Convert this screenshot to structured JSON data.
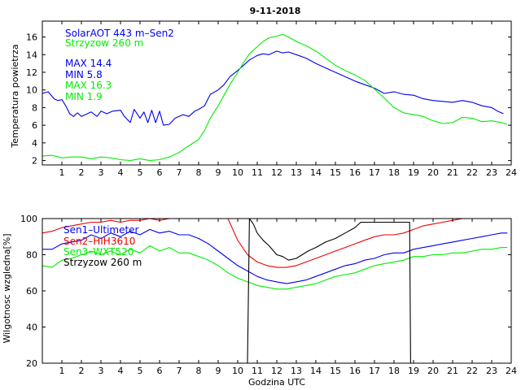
{
  "title": "9-11-2018",
  "colors": {
    "blue": "#0000ee",
    "green": "#00ee00",
    "red": "#ee0000",
    "black": "#000000"
  },
  "chart_data": [
    {
      "type": "line",
      "ylabel": "Temperatura powietrza",
      "xlabel": "",
      "xlim": [
        0,
        24
      ],
      "ylim": [
        1.5,
        17.8
      ],
      "xticks": [
        1,
        2,
        3,
        4,
        5,
        6,
        7,
        8,
        9,
        10,
        11,
        12,
        13,
        14,
        15,
        16,
        17,
        18,
        19,
        20,
        21,
        22,
        23,
        24
      ],
      "xticklabels": [
        "1",
        "2",
        "3",
        "4",
        "5",
        "6",
        "7",
        "8",
        "9",
        "10",
        "11",
        "12",
        "13",
        "14",
        "15",
        "16",
        "17",
        "18",
        "19",
        "20",
        "21",
        "22",
        "23",
        "24"
      ],
      "yticks": [
        2,
        4,
        6,
        8,
        10,
        12,
        14,
        16
      ],
      "yticklabels": [
        "2",
        "4",
        "6",
        "8",
        "10",
        "12",
        "14",
        "16"
      ],
      "legend": [
        {
          "text": "SolarAOT 443 m–Sen2",
          "color": "blue"
        },
        {
          "text": "Strzyzow 260 m",
          "color": "green"
        }
      ],
      "stats": [
        {
          "text": "MAX 14.4",
          "color": "blue"
        },
        {
          "text": "MIN 5.8",
          "color": "blue"
        },
        {
          "text": "MAX 16.3",
          "color": "green"
        },
        {
          "text": "MIN 1.9",
          "color": "green"
        }
      ],
      "series": [
        {
          "name": "SolarAOT 443 m–Sen2",
          "color": "blue",
          "x": [
            0.0,
            0.3,
            0.6,
            0.8,
            1.0,
            1.2,
            1.4,
            1.6,
            1.8,
            2.0,
            2.2,
            2.5,
            2.8,
            3.0,
            3.3,
            3.6,
            4.0,
            4.2,
            4.5,
            4.7,
            5.0,
            5.2,
            5.4,
            5.6,
            5.8,
            6.0,
            6.2,
            6.5,
            6.8,
            7.0,
            7.2,
            7.5,
            7.8,
            8.0,
            8.3,
            8.6,
            9.0,
            9.3,
            9.6,
            10.0,
            10.3,
            10.6,
            11.0,
            11.3,
            11.6,
            12.0,
            12.3,
            12.6,
            13.0,
            13.5,
            14.0,
            14.5,
            15.0,
            15.5,
            16.0,
            16.5,
            17.0,
            17.5,
            18.0,
            18.5,
            19.0,
            19.5,
            20.0,
            20.5,
            21.0,
            21.5,
            22.0,
            22.5,
            23.0,
            23.3,
            23.6
          ],
          "y": [
            9.6,
            9.8,
            9.0,
            8.8,
            8.9,
            8.2,
            7.3,
            7.0,
            7.4,
            7.0,
            7.2,
            7.5,
            7.0,
            7.6,
            7.3,
            7.6,
            7.7,
            7.0,
            6.3,
            7.8,
            6.8,
            7.5,
            6.3,
            7.7,
            6.3,
            7.6,
            6.0,
            6.1,
            6.8,
            7.0,
            7.2,
            7.0,
            7.6,
            7.8,
            8.2,
            9.5,
            10.0,
            10.6,
            11.5,
            12.2,
            12.8,
            13.4,
            13.9,
            14.1,
            14.0,
            14.4,
            14.2,
            14.3,
            14.0,
            13.6,
            13.0,
            12.5,
            12.0,
            11.5,
            11.0,
            10.6,
            10.2,
            9.6,
            9.8,
            9.5,
            9.4,
            9.0,
            8.8,
            8.7,
            8.6,
            8.8,
            8.6,
            8.2,
            8.0,
            7.6,
            7.3
          ]
        },
        {
          "name": "Strzyzow 260 m",
          "color": "green",
          "x": [
            0.0,
            0.5,
            1.0,
            1.5,
            2.0,
            2.5,
            3.0,
            3.5,
            4.0,
            4.5,
            5.0,
            5.5,
            6.0,
            6.5,
            7.0,
            7.3,
            7.6,
            8.0,
            8.3,
            8.6,
            9.0,
            9.3,
            9.6,
            10.0,
            10.3,
            10.6,
            11.0,
            11.3,
            11.6,
            12.0,
            12.3,
            12.6,
            13.0,
            13.3,
            13.6,
            14.0,
            14.5,
            15.0,
            15.5,
            16.0,
            16.5,
            17.0,
            17.5,
            18.0,
            18.5,
            19.0,
            19.5,
            20.0,
            20.5,
            21.0,
            21.5,
            22.0,
            22.5,
            23.0,
            23.5,
            23.8
          ],
          "y": [
            2.5,
            2.6,
            2.3,
            2.4,
            2.4,
            2.2,
            2.4,
            2.3,
            2.1,
            2.0,
            2.2,
            2.0,
            2.1,
            2.4,
            2.9,
            3.4,
            3.8,
            4.4,
            5.4,
            6.8,
            8.2,
            9.4,
            10.6,
            12.0,
            13.1,
            14.1,
            14.9,
            15.5,
            15.9,
            16.1,
            16.3,
            16.0,
            15.5,
            15.2,
            14.9,
            14.4,
            13.6,
            12.8,
            12.2,
            11.7,
            11.1,
            10.1,
            9.1,
            8.0,
            7.4,
            7.2,
            7.0,
            6.5,
            6.2,
            6.3,
            6.9,
            6.8,
            6.4,
            6.5,
            6.3,
            6.1
          ]
        }
      ]
    },
    {
      "type": "line",
      "ylabel": "Wilgotnosc wzgledna[%]",
      "xlabel": "Godzina UTC",
      "xlim": [
        0,
        24
      ],
      "ylim": [
        20,
        100
      ],
      "xticks": [
        1,
        2,
        3,
        4,
        5,
        6,
        7,
        8,
        9,
        10,
        11,
        12,
        13,
        14,
        15,
        16,
        17,
        18,
        19,
        20,
        21,
        22,
        23,
        24
      ],
      "xticklabels": [
        "1",
        "2",
        "3",
        "4",
        "5",
        "6",
        "7",
        "8",
        "9",
        "10",
        "11",
        "12",
        "13",
        "14",
        "15",
        "16",
        "17",
        "18",
        "19",
        "20",
        "21",
        "22",
        "23",
        "24"
      ],
      "yticks": [
        20,
        40,
        60,
        80,
        100
      ],
      "yticklabels": [
        "20",
        "40",
        "60",
        "80",
        "100"
      ],
      "legend": [
        {
          "text": "Sen1–Ultimeter",
          "color": "blue"
        },
        {
          "text": "Sen2–HIH3610",
          "color": "red"
        },
        {
          "text": "Sen3–WXT520",
          "color": "green"
        },
        {
          "text": "Strzyzow 260 m",
          "color": "black"
        }
      ],
      "series": [
        {
          "name": "Sen1–Ultimeter",
          "color": "blue",
          "x": [
            0.0,
            0.5,
            1.0,
            1.5,
            2.0,
            2.5,
            3.0,
            3.5,
            4.0,
            4.5,
            5.0,
            5.5,
            6.0,
            6.5,
            7.0,
            7.5,
            8.0,
            8.5,
            9.0,
            9.5,
            10.0,
            10.5,
            11.0,
            11.5,
            12.0,
            12.5,
            13.0,
            13.5,
            14.0,
            14.5,
            15.0,
            15.5,
            16.0,
            16.5,
            17.0,
            17.5,
            18.0,
            18.5,
            19.0,
            19.5,
            20.0,
            20.5,
            21.0,
            21.5,
            22.0,
            22.5,
            23.0,
            23.5,
            23.8
          ],
          "y": [
            83,
            83,
            86,
            87,
            88,
            91,
            89,
            92,
            90,
            93,
            91,
            94,
            92,
            93,
            91,
            91,
            89,
            86,
            82,
            78,
            74,
            71,
            68,
            66,
            65,
            64,
            65,
            66,
            68,
            70,
            72,
            74,
            75,
            77,
            78,
            80,
            81,
            81,
            83,
            84,
            85,
            86,
            87,
            88,
            89,
            90,
            91,
            92,
            92
          ]
        },
        {
          "name": "Sen2–HIH3610",
          "color": "red",
          "x": [
            0.0,
            0.5,
            1.0,
            1.5,
            2.0,
            2.5,
            3.0,
            3.5,
            4.0,
            4.5,
            5.0,
            5.5,
            6.0,
            6.5,
            7.0,
            7.5,
            8.0,
            8.5,
            9.0,
            9.5,
            10.0,
            10.5,
            11.0,
            11.5,
            12.0,
            12.5,
            13.0,
            13.5,
            14.0,
            14.5,
            15.0,
            15.5,
            16.0,
            16.5,
            17.0,
            17.5,
            18.0,
            18.5,
            19.0,
            19.5,
            20.0,
            20.5,
            21.0,
            21.5,
            22.0
          ],
          "y": [
            92,
            93,
            95,
            96,
            97,
            98,
            98,
            99,
            98,
            99,
            99,
            100,
            99,
            100,
            100,
            100,
            100,
            100,
            100,
            100,
            88,
            80,
            76,
            74,
            73,
            73,
            74,
            76,
            78,
            80,
            82,
            84,
            86,
            88,
            90,
            91,
            91,
            92,
            94,
            96,
            97,
            98,
            99,
            100,
            100
          ]
        },
        {
          "name": "Sen3–WXT520",
          "color": "green",
          "x": [
            0.0,
            0.5,
            1.0,
            1.5,
            2.0,
            2.5,
            3.0,
            3.5,
            4.0,
            4.5,
            5.0,
            5.5,
            6.0,
            6.5,
            7.0,
            7.5,
            8.0,
            8.5,
            9.0,
            9.5,
            10.0,
            10.5,
            11.0,
            11.5,
            12.0,
            12.5,
            13.0,
            13.5,
            14.0,
            14.5,
            15.0,
            15.5,
            16.0,
            16.5,
            17.0,
            17.5,
            18.0,
            18.5,
            19.0,
            19.5,
            20.0,
            20.5,
            21.0,
            21.5,
            22.0,
            22.5,
            23.0,
            23.5,
            23.8
          ],
          "y": [
            74,
            73,
            77,
            78,
            80,
            82,
            80,
            82,
            80,
            83,
            81,
            85,
            82,
            84,
            81,
            81,
            79,
            77,
            74,
            70,
            67,
            65,
            63,
            62,
            61,
            61,
            62,
            63,
            64,
            66,
            68,
            69,
            70,
            72,
            74,
            75,
            76,
            77,
            79,
            79,
            80,
            80,
            81,
            81,
            82,
            83,
            83,
            84,
            84
          ]
        },
        {
          "name": "Strzyzow 260 m",
          "color": "black",
          "x": [
            10.5,
            10.6,
            10.8,
            11.0,
            11.3,
            11.6,
            12.0,
            12.3,
            12.6,
            13.0,
            13.3,
            13.6,
            14.0,
            14.5,
            15.0,
            15.5,
            16.0,
            16.3,
            18.8,
            18.85
          ],
          "y": [
            20,
            100,
            97,
            92,
            88,
            85,
            80,
            79,
            77,
            78,
            80,
            82,
            84,
            87,
            89,
            92,
            95,
            98,
            98,
            20
          ]
        }
      ]
    }
  ]
}
